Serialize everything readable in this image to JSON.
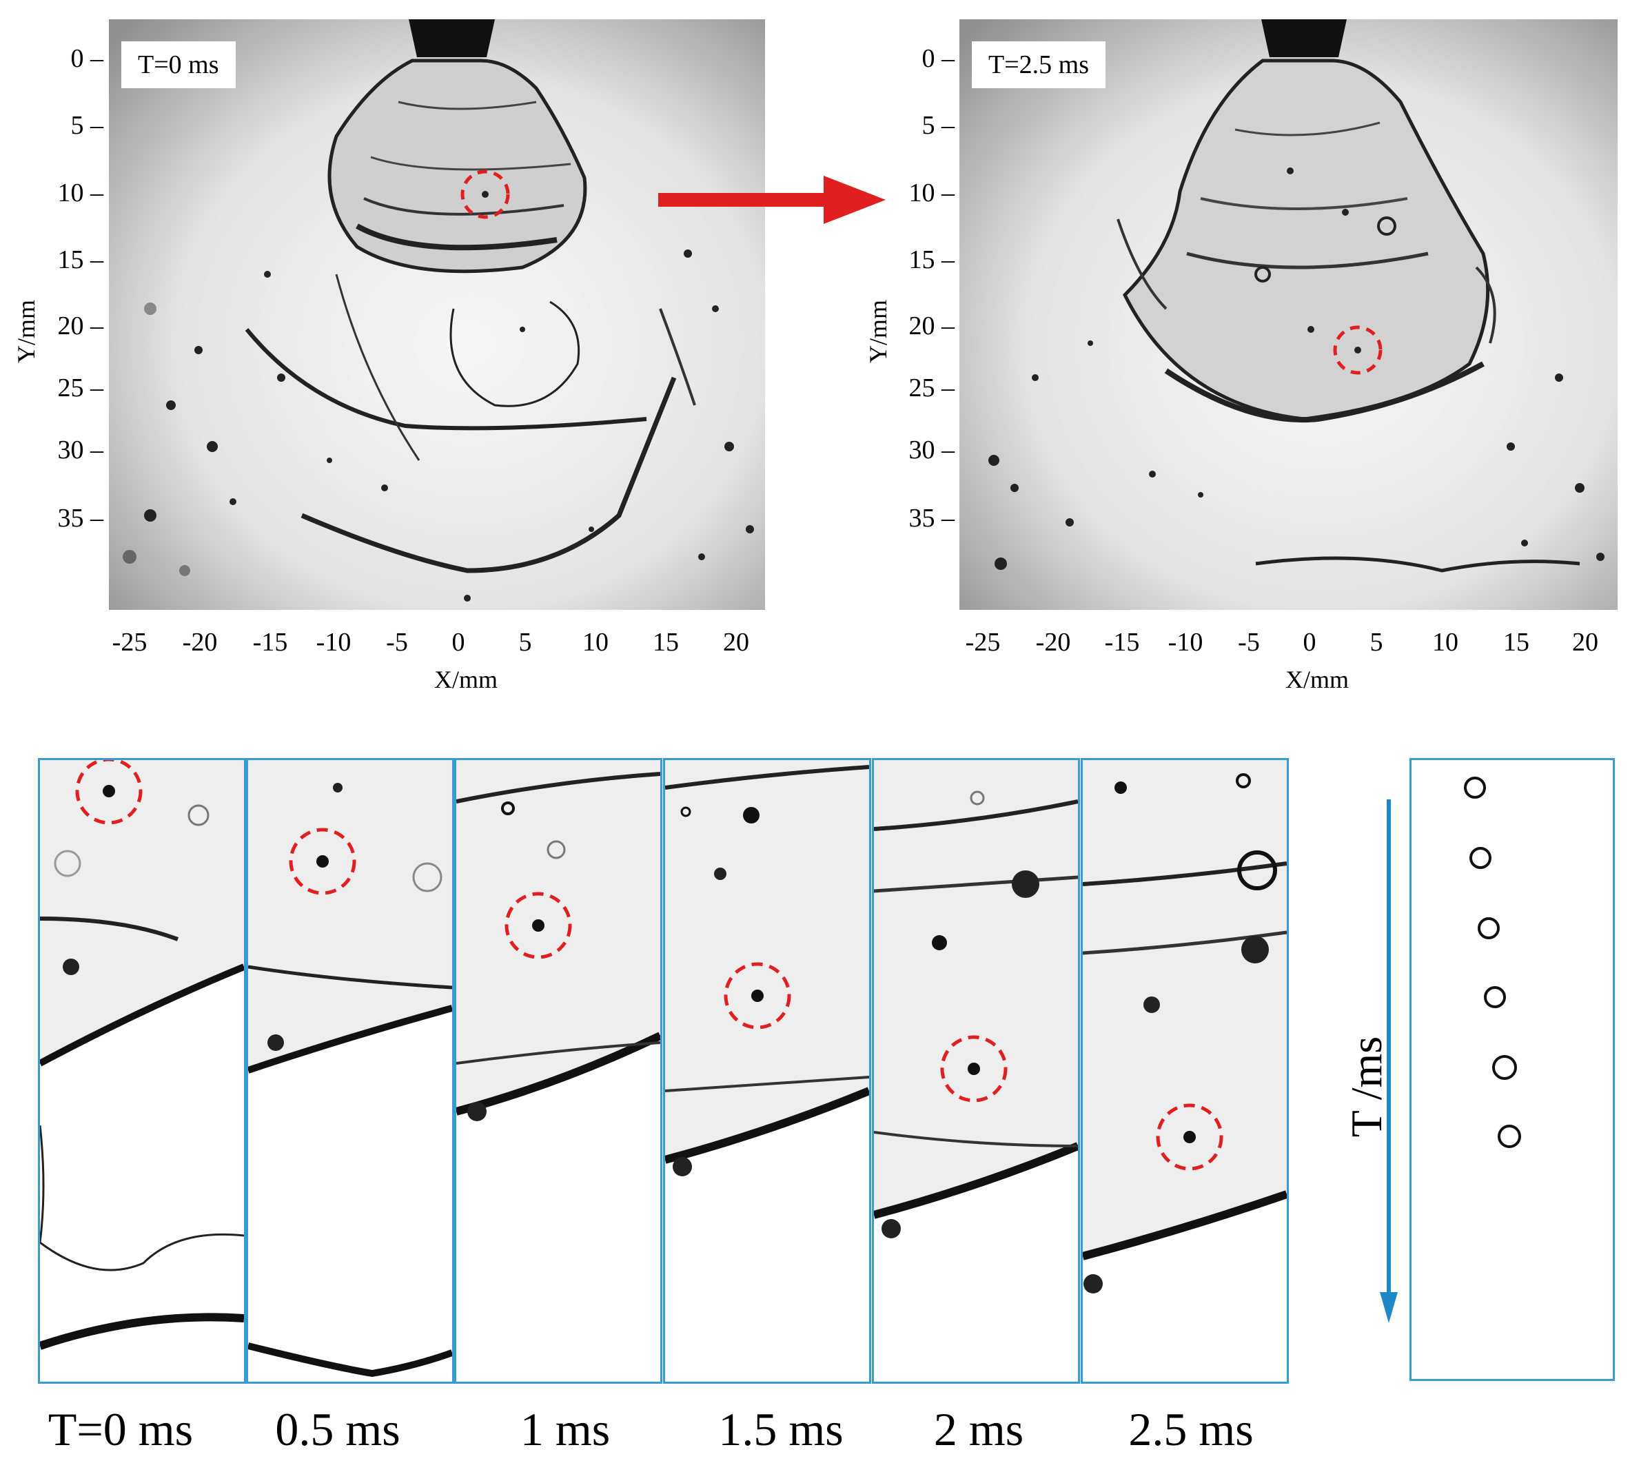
{
  "top_panels": [
    {
      "time_label": "T=0 ms"
    },
    {
      "time_label": "T=2.5 ms"
    }
  ],
  "axes": {
    "x_title": "X/mm",
    "y_title": "Y/mm",
    "y_ticks": [
      "0",
      "5",
      "10",
      "15",
      "20",
      "25",
      "30",
      "35"
    ],
    "x_ticks": [
      "-25",
      "-20",
      "-15",
      "-10",
      "-5",
      "0",
      "5",
      "10",
      "15",
      "20"
    ]
  },
  "sequence": {
    "frame_labels": [
      "T=0 ms",
      "0.5 ms",
      "1 ms",
      "1.5 ms",
      "2 ms",
      "2.5 ms"
    ],
    "time_axis_label": "T /ms"
  },
  "colors": {
    "highlight": "#e02020",
    "frame_border": "#3a9bd0",
    "time_arrow": "#1f88c8"
  }
}
